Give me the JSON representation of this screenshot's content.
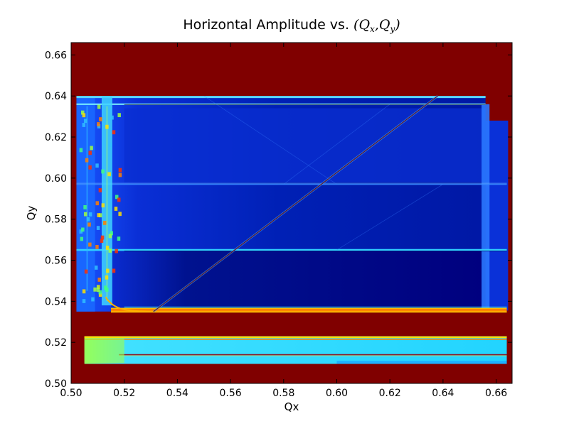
{
  "chart_data": {
    "type": "heatmap",
    "title_text": "Horizontal Amplitude vs. ",
    "title_math": "(Q",
    "title_sub_x": "x",
    "title_sep": ",Q",
    "title_sub_y": "y",
    "title_close": ")",
    "xlabel": "Qx",
    "ylabel": "Qy",
    "xlim": [
      0.5,
      0.666
    ],
    "ylim": [
      0.5,
      0.666
    ],
    "xticks": [
      0.5,
      0.52,
      0.54,
      0.56,
      0.58,
      0.6,
      0.62,
      0.64,
      0.66
    ],
    "yticks": [
      0.5,
      0.52,
      0.54,
      0.56,
      0.58,
      0.6,
      0.62,
      0.64,
      0.66
    ],
    "xtick_labels": [
      "0.50",
      "0.52",
      "0.54",
      "0.56",
      "0.58",
      "0.60",
      "0.62",
      "0.64",
      "0.66"
    ],
    "ytick_labels": [
      "0.50",
      "0.52",
      "0.54",
      "0.56",
      "0.58",
      "0.60",
      "0.62",
      "0.64",
      "0.66"
    ],
    "colormap": "jet",
    "colors": {
      "high": "#800000",
      "low": "#00007f",
      "mid_blue": "#0a2ccc",
      "bright_blue": "#1452ff",
      "cyan": "#2fdcff",
      "yellow": "#ffe200",
      "red": "#ff2200"
    },
    "regions": [
      {
        "name": "saturated-background",
        "x": [
          0.5,
          0.666
        ],
        "y": [
          0.5,
          0.666
        ],
        "level": "high"
      },
      {
        "name": "bottom-band",
        "x": [
          0.505,
          0.664
        ],
        "y": [
          0.509,
          0.523
        ],
        "level": "cyan"
      },
      {
        "name": "main-region",
        "x": [
          0.5,
          0.656
        ],
        "y": [
          0.535,
          0.64
        ],
        "level": "low"
      },
      {
        "name": "right-region",
        "x": [
          0.656,
          0.664
        ],
        "y": [
          0.535,
          0.628
        ],
        "level": "mid_blue"
      }
    ],
    "resonance_lines": [
      {
        "name": "line-qy-0.636",
        "y": 0.636,
        "x": [
          0.502,
          0.656
        ]
      },
      {
        "name": "line-qy-0.597",
        "y": 0.597,
        "x": [
          0.502,
          0.664
        ]
      },
      {
        "name": "line-qy-0.565",
        "y": 0.565,
        "x": [
          0.502,
          0.664
        ]
      },
      {
        "name": "line-qy-0.535",
        "y": 0.535,
        "x": [
          0.515,
          0.664
        ]
      },
      {
        "name": "line-qy-0.514",
        "y": 0.514,
        "x": [
          0.52,
          0.664
        ]
      },
      {
        "name": "line-qx-0.513",
        "x": 0.513,
        "y": [
          0.535,
          0.64
        ]
      }
    ],
    "diagonal_line": {
      "x": [
        0.531,
        0.638
      ],
      "y": [
        0.535,
        0.64
      ]
    }
  }
}
